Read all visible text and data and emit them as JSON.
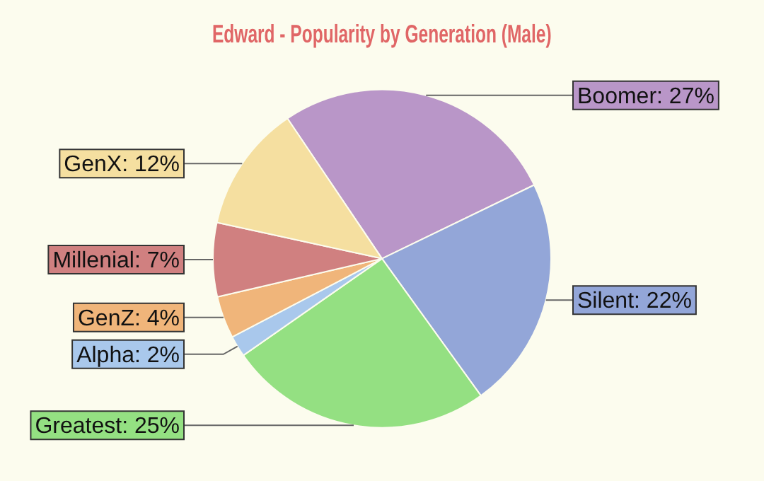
{
  "chart_data": {
    "type": "pie",
    "title": "Edward - Popularity by Generation (Male)",
    "categories": [
      "Boomer",
      "Silent",
      "Greatest",
      "Alpha",
      "GenZ",
      "Millenial",
      "GenX"
    ],
    "values": [
      27,
      22,
      25,
      2,
      4,
      7,
      12
    ],
    "value_labels": [
      "27%",
      "22%",
      "25%",
      "2%",
      "4%",
      "7%",
      "12%"
    ],
    "colors": [
      "#b996c8",
      "#93a6d8",
      "#94e082",
      "#a9c8ec",
      "#f0b57a",
      "#d08080",
      "#f5dfa0"
    ],
    "legend": false
  }
}
